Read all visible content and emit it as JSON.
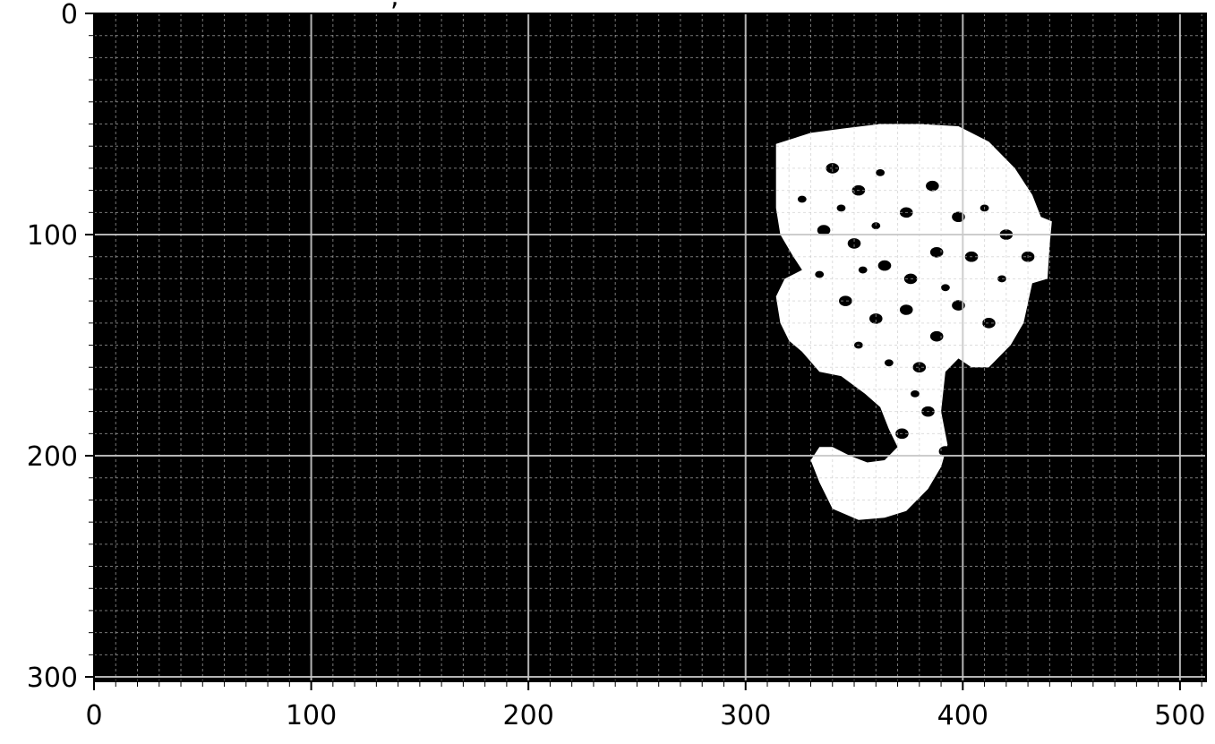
{
  "chart_data": {
    "type": "heatmap",
    "title": "",
    "xlabel": "",
    "ylabel": "",
    "xlim": [
      0,
      512
    ],
    "ylim": [
      302,
      0
    ],
    "x_ticks": [
      "0",
      "100",
      "200",
      "300",
      "400",
      "500"
    ],
    "y_ticks": [
      "0",
      "100",
      "200",
      "300"
    ],
    "x_tick_values": [
      0,
      100,
      200,
      300,
      400,
      500
    ],
    "y_tick_values": [
      0,
      100,
      200,
      300
    ],
    "minor_tick_step": 10,
    "grid": true,
    "colormap": "gray",
    "colors": {
      "background": "#000000",
      "foreground": "#ffffff",
      "grid": "#c8c8c8"
    },
    "mask_region": {
      "description_values_in_data_units": true,
      "outline": [
        [
          314,
          59
        ],
        [
          330,
          54
        ],
        [
          345,
          52
        ],
        [
          362,
          50
        ],
        [
          380,
          50
        ],
        [
          398,
          51
        ],
        [
          412,
          58
        ],
        [
          424,
          70
        ],
        [
          432,
          82
        ],
        [
          436,
          92
        ],
        [
          441,
          94
        ],
        [
          440,
          105
        ],
        [
          439,
          120
        ],
        [
          432,
          122
        ],
        [
          428,
          140
        ],
        [
          422,
          150
        ],
        [
          412,
          160
        ],
        [
          404,
          160
        ],
        [
          398,
          156
        ],
        [
          392,
          162
        ],
        [
          390,
          180
        ],
        [
          393,
          195
        ],
        [
          390,
          205
        ],
        [
          384,
          215
        ],
        [
          374,
          225
        ],
        [
          364,
          228
        ],
        [
          352,
          229
        ],
        [
          340,
          224
        ],
        [
          334,
          212
        ],
        [
          330,
          202
        ],
        [
          334,
          196
        ],
        [
          340,
          196
        ],
        [
          348,
          200
        ],
        [
          356,
          203
        ],
        [
          364,
          202
        ],
        [
          370,
          196
        ],
        [
          366,
          188
        ],
        [
          362,
          178
        ],
        [
          355,
          172
        ],
        [
          344,
          164
        ],
        [
          334,
          162
        ],
        [
          326,
          153
        ],
        [
          320,
          148
        ],
        [
          316,
          140
        ],
        [
          314,
          128
        ],
        [
          318,
          120
        ],
        [
          326,
          116
        ],
        [
          322,
          110
        ],
        [
          316,
          100
        ],
        [
          314,
          88
        ],
        [
          314,
          74
        ]
      ],
      "holes": [
        [
          340,
          70,
          3
        ],
        [
          352,
          80,
          3
        ],
        [
          362,
          72,
          2
        ],
        [
          374,
          90,
          3
        ],
        [
          386,
          78,
          3
        ],
        [
          398,
          92,
          3
        ],
        [
          410,
          88,
          2
        ],
        [
          420,
          100,
          3
        ],
        [
          430,
          110,
          3
        ],
        [
          404,
          110,
          3
        ],
        [
          388,
          108,
          3
        ],
        [
          376,
          120,
          3
        ],
        [
          364,
          114,
          3
        ],
        [
          350,
          104,
          3
        ],
        [
          336,
          98,
          3
        ],
        [
          326,
          84,
          2
        ],
        [
          346,
          130,
          3
        ],
        [
          360,
          138,
          3
        ],
        [
          374,
          134,
          3
        ],
        [
          388,
          146,
          3
        ],
        [
          398,
          132,
          3
        ],
        [
          412,
          140,
          3
        ],
        [
          380,
          160,
          3
        ],
        [
          366,
          158,
          2
        ],
        [
          352,
          150,
          2
        ],
        [
          384,
          180,
          3
        ],
        [
          372,
          190,
          3
        ],
        [
          392,
          198,
          3
        ],
        [
          344,
          88,
          2
        ],
        [
          360,
          96,
          2
        ],
        [
          392,
          124,
          2
        ],
        [
          418,
          120,
          2
        ],
        [
          334,
          118,
          2
        ],
        [
          378,
          172,
          2
        ],
        [
          354,
          116,
          2
        ]
      ]
    }
  },
  "title_fragment": ", "
}
